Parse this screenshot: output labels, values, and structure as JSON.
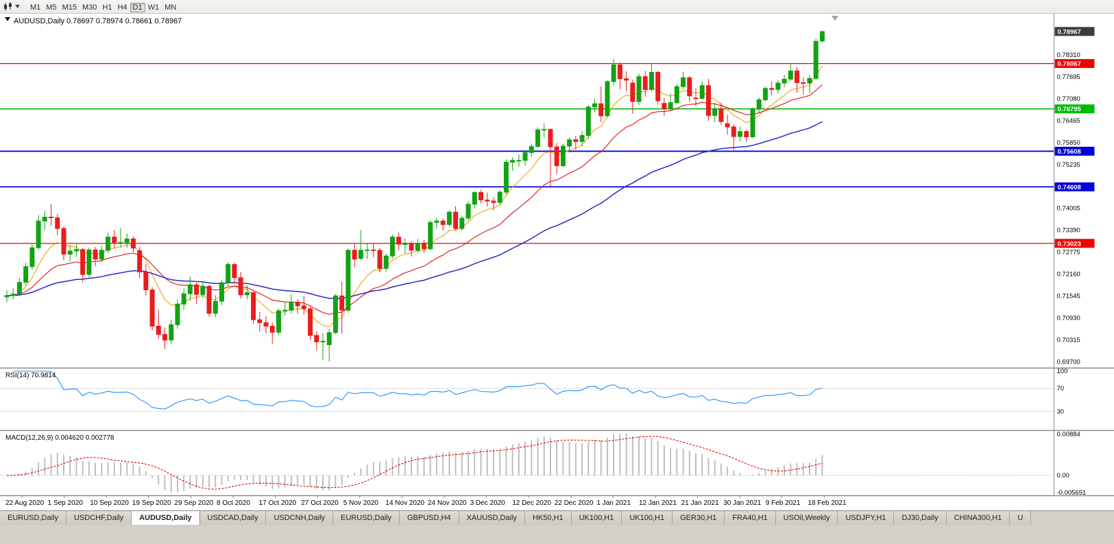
{
  "toolbar": {
    "chart_icon": "candlestick-chart-icon",
    "dropdown_icon": "chevron-down-icon",
    "timeframes": [
      "M1",
      "M5",
      "M15",
      "M30",
      "H1",
      "H4",
      "D1",
      "W1",
      "MN"
    ],
    "active_timeframe": "D1"
  },
  "chart": {
    "title_line": "AUDUSD,Daily 0.78697 0.78974 0.78661 0.78967"
  },
  "panes": {
    "rsi_label": "RSI(14) 70.9814",
    "macd_label": "MACD(12,26,9) 0.004620 0.002778"
  },
  "tabs": {
    "active_index": 2,
    "items": [
      "EURUSD,Daily",
      "USDCHF,Daily",
      "AUDUSD,Daily",
      "USDCAD,Daily",
      "USDCNH,Daily",
      "EURUSD,Daily",
      "GBPUSD,H4",
      "XAUUSD,Daily",
      "HK50,H1",
      "UK100,H1",
      "UK100,H1",
      "GER30,H1",
      "FRA40,H1",
      "USOil,Weekly",
      "USDJPY,H1",
      "DJ30,Daily",
      "CHINA300,H1",
      "U"
    ]
  },
  "chart_data": {
    "type": "candlestick",
    "symbol": "AUDUSD",
    "timeframe": "Daily",
    "current_bar": {
      "open": 0.78697,
      "high": 0.78974,
      "low": 0.78661,
      "close": 0.78967
    },
    "colors": {
      "up": "#12a312",
      "down": "#ea1c1c"
    },
    "price_axis": {
      "current": "0.78967",
      "current_bg": "#3d3d3d",
      "ticks": [
        "0.78310",
        "0.77695",
        "0.77080",
        "0.76465",
        "0.75850",
        "0.75235",
        "0.74620",
        "0.74005",
        "0.73390",
        "0.72775",
        "0.72160",
        "0.71545",
        "0.70930",
        "0.70315",
        "0.69700"
      ]
    },
    "levels": [
      {
        "price": 0.78067,
        "label": "0.78067",
        "color": "#f00000",
        "width": 1.3
      },
      {
        "price": 0.76795,
        "label": "0.76795",
        "color": "#00bb00",
        "width": 1.6
      },
      {
        "price": 0.75608,
        "label": "0.75608",
        "color": "#0000dc",
        "width": 1.8
      },
      {
        "price": 0.74608,
        "label": "0.74608",
        "color": "#0000dc",
        "width": 1.8
      },
      {
        "price": 0.73023,
        "label": "0.73023",
        "color": "#f00000",
        "width": 1.3
      }
    ],
    "moving_averages": [
      {
        "name": "fast-ma",
        "period": 8,
        "color": "#f5a623",
        "width": 1.2
      },
      {
        "name": "medium-ma",
        "period": 20,
        "color": "#e02020",
        "width": 1.2
      },
      {
        "name": "slow-ma",
        "period": 55,
        "color": "#2828c8",
        "width": 1.5
      }
    ],
    "rsi": {
      "period": 14,
      "value": 70.9814,
      "color": "#1e90ff",
      "levels": [
        100,
        70,
        30
      ]
    },
    "macd": {
      "fast": 12,
      "slow": 26,
      "signal": 9,
      "value": 0.00462,
      "signal_value": 0.002778,
      "hist_color": "#b8b8b8",
      "signal_color": "#e00000",
      "axis_labels": {
        "max": "0.00884",
        "zero": "0.00",
        "min": "-0.005651"
      }
    },
    "dates": [
      "22 Aug 2020",
      "1 Sep 2020",
      "10 Sep 2020",
      "19 Sep 2020",
      "29 Sep 2020",
      "8 Oct 2020",
      "17 Oct 2020",
      "27 Oct 2020",
      "5 Nov 2020",
      "14 Nov 2020",
      "24 Nov 2020",
      "3 Dec 2020",
      "12 Dec 2020",
      "22 Dec 2020",
      "1 Jan 2021",
      "12 Jan 2021",
      "21 Jan 2021",
      "30 Jan 2021",
      "9 Feb 2021",
      "18 Feb 2021"
    ],
    "candles": [
      [
        0.7152,
        0.7171,
        0.7137,
        0.7156
      ],
      [
        0.7156,
        0.7176,
        0.7146,
        0.716
      ],
      [
        0.716,
        0.7205,
        0.7155,
        0.7193
      ],
      [
        0.7193,
        0.7248,
        0.7185,
        0.7237
      ],
      [
        0.7237,
        0.7302,
        0.7229,
        0.729
      ],
      [
        0.729,
        0.7382,
        0.7285,
        0.7365
      ],
      [
        0.7365,
        0.7393,
        0.734,
        0.7376
      ],
      [
        0.7376,
        0.7413,
        0.7352,
        0.7374
      ],
      [
        0.7374,
        0.7385,
        0.7325,
        0.7344
      ],
      [
        0.7344,
        0.735,
        0.7255,
        0.7272
      ],
      [
        0.7272,
        0.7299,
        0.7251,
        0.7281
      ],
      [
        0.7281,
        0.73,
        0.7264,
        0.7285
      ],
      [
        0.7285,
        0.729,
        0.7193,
        0.7215
      ],
      [
        0.7215,
        0.729,
        0.7208,
        0.7284
      ],
      [
        0.7284,
        0.7292,
        0.7238,
        0.7258
      ],
      [
        0.7258,
        0.7295,
        0.725,
        0.7283
      ],
      [
        0.7283,
        0.7332,
        0.7275,
        0.732
      ],
      [
        0.732,
        0.734,
        0.7288,
        0.7305
      ],
      [
        0.7305,
        0.7345,
        0.729,
        0.7305
      ],
      [
        0.7305,
        0.733,
        0.729,
        0.7315
      ],
      [
        0.7315,
        0.7322,
        0.7277,
        0.7289
      ],
      [
        0.7282,
        0.7292,
        0.7205,
        0.7222
      ],
      [
        0.7222,
        0.7244,
        0.7156,
        0.7172
      ],
      [
        0.7172,
        0.718,
        0.7057,
        0.707
      ],
      [
        0.707,
        0.7116,
        0.7035,
        0.7047
      ],
      [
        0.7047,
        0.7066,
        0.7006,
        0.7031
      ],
      [
        0.7031,
        0.7088,
        0.7021,
        0.7074
      ],
      [
        0.7074,
        0.7145,
        0.7063,
        0.7132
      ],
      [
        0.7132,
        0.7176,
        0.7116,
        0.7161
      ],
      [
        0.7161,
        0.7209,
        0.7141,
        0.7186
      ],
      [
        0.7186,
        0.7192,
        0.7132,
        0.7159
      ],
      [
        0.7159,
        0.7197,
        0.715,
        0.7182
      ],
      [
        0.7182,
        0.7186,
        0.7097,
        0.7106
      ],
      [
        0.7106,
        0.7157,
        0.7095,
        0.714
      ],
      [
        0.714,
        0.7199,
        0.7129,
        0.7192
      ],
      [
        0.7192,
        0.725,
        0.7182,
        0.7243
      ],
      [
        0.7243,
        0.7248,
        0.719,
        0.7206
      ],
      [
        0.7206,
        0.7222,
        0.7148,
        0.7158
      ],
      [
        0.7158,
        0.7185,
        0.7145,
        0.7164
      ],
      [
        0.7164,
        0.717,
        0.7075,
        0.7088
      ],
      [
        0.7088,
        0.711,
        0.7055,
        0.708
      ],
      [
        0.708,
        0.7098,
        0.705,
        0.707
      ],
      [
        0.707,
        0.708,
        0.7021,
        0.7053
      ],
      [
        0.7053,
        0.712,
        0.7045,
        0.7113
      ],
      [
        0.7113,
        0.7138,
        0.71,
        0.7115
      ],
      [
        0.7115,
        0.716,
        0.7105,
        0.7137
      ],
      [
        0.7137,
        0.7145,
        0.7105,
        0.7127
      ],
      [
        0.7127,
        0.7155,
        0.7103,
        0.7119
      ],
      [
        0.7119,
        0.7125,
        0.703,
        0.7044
      ],
      [
        0.7044,
        0.7055,
        0.7002,
        0.7026
      ],
      [
        0.7026,
        0.705,
        0.6975,
        0.7028
      ],
      [
        0.7018,
        0.7062,
        0.6971,
        0.7052
      ],
      [
        0.7052,
        0.716,
        0.7048,
        0.7155
      ],
      [
        0.7155,
        0.7195,
        0.7049,
        0.7115
      ],
      [
        0.7115,
        0.7288,
        0.7108,
        0.7283
      ],
      [
        0.7283,
        0.7301,
        0.7235,
        0.7258
      ],
      [
        0.726,
        0.734,
        0.7255,
        0.7283
      ],
      [
        0.7283,
        0.7302,
        0.7258,
        0.7284
      ],
      [
        0.7284,
        0.7302,
        0.7263,
        0.7283
      ],
      [
        0.7283,
        0.729,
        0.7221,
        0.7232
      ],
      [
        0.7232,
        0.7273,
        0.7223,
        0.7267
      ],
      [
        0.7267,
        0.7327,
        0.726,
        0.732
      ],
      [
        0.732,
        0.7333,
        0.7283,
        0.73
      ],
      [
        0.73,
        0.7316,
        0.7275,
        0.7301
      ],
      [
        0.7301,
        0.7309,
        0.7265,
        0.7283
      ],
      [
        0.7283,
        0.7315,
        0.7276,
        0.7303
      ],
      [
        0.7303,
        0.7312,
        0.7276,
        0.7287
      ],
      [
        0.7287,
        0.7367,
        0.7283,
        0.7361
      ],
      [
        0.7361,
        0.7374,
        0.7343,
        0.7365
      ],
      [
        0.7365,
        0.7372,
        0.7338,
        0.7355
      ],
      [
        0.7355,
        0.7395,
        0.735,
        0.739
      ],
      [
        0.739,
        0.7407,
        0.7339,
        0.7344
      ],
      [
        0.7344,
        0.7379,
        0.7338,
        0.7373
      ],
      [
        0.7373,
        0.742,
        0.7365,
        0.7412
      ],
      [
        0.7412,
        0.7449,
        0.74,
        0.7445
      ],
      [
        0.7445,
        0.7453,
        0.7414,
        0.7424
      ],
      [
        0.7424,
        0.7445,
        0.7405,
        0.7421
      ],
      [
        0.7421,
        0.7432,
        0.7395,
        0.7417
      ],
      [
        0.7417,
        0.7452,
        0.741,
        0.7446
      ],
      [
        0.7446,
        0.7538,
        0.744,
        0.753
      ],
      [
        0.753,
        0.7543,
        0.7506,
        0.7535
      ],
      [
        0.7535,
        0.7552,
        0.7517,
        0.7535
      ],
      [
        0.7535,
        0.7564,
        0.752,
        0.7557
      ],
      [
        0.7557,
        0.7582,
        0.7545,
        0.7574
      ],
      [
        0.7574,
        0.7628,
        0.757,
        0.7621
      ],
      [
        0.7621,
        0.7639,
        0.7599,
        0.7622
      ],
      [
        0.7622,
        0.7624,
        0.7462,
        0.7573
      ],
      [
        0.7573,
        0.7584,
        0.7497,
        0.752
      ],
      [
        0.752,
        0.7582,
        0.7516,
        0.7575
      ],
      [
        0.7575,
        0.76,
        0.7557,
        0.7593
      ],
      [
        0.7593,
        0.7604,
        0.7565,
        0.7588
      ],
      [
        0.7588,
        0.7618,
        0.7575,
        0.7605
      ],
      [
        0.7605,
        0.769,
        0.7595,
        0.7685
      ],
      [
        0.7685,
        0.7708,
        0.767,
        0.7694
      ],
      [
        0.7694,
        0.7743,
        0.7642,
        0.766
      ],
      [
        0.766,
        0.776,
        0.7655,
        0.7756
      ],
      [
        0.7756,
        0.782,
        0.7745,
        0.7803
      ],
      [
        0.7803,
        0.781,
        0.7735,
        0.7764
      ],
      [
        0.7764,
        0.7785,
        0.7729,
        0.776
      ],
      [
        0.7752,
        0.7762,
        0.7666,
        0.77
      ],
      [
        0.77,
        0.7778,
        0.769,
        0.777
      ],
      [
        0.777,
        0.7786,
        0.7713,
        0.7734
      ],
      [
        0.7734,
        0.7805,
        0.7728,
        0.7782
      ],
      [
        0.7782,
        0.7786,
        0.7691,
        0.7702
      ],
      [
        0.7695,
        0.771,
        0.7659,
        0.7679
      ],
      [
        0.7679,
        0.7723,
        0.7674,
        0.7697
      ],
      [
        0.7697,
        0.775,
        0.7692,
        0.7742
      ],
      [
        0.7742,
        0.7784,
        0.7735,
        0.7767
      ],
      [
        0.7767,
        0.7772,
        0.77,
        0.7716
      ],
      [
        0.771,
        0.7737,
        0.7688,
        0.7709
      ],
      [
        0.7709,
        0.7758,
        0.7705,
        0.7745
      ],
      [
        0.7745,
        0.7764,
        0.7646,
        0.7661
      ],
      [
        0.7661,
        0.7696,
        0.7642,
        0.768
      ],
      [
        0.768,
        0.7696,
        0.7635,
        0.7644
      ],
      [
        0.7638,
        0.7664,
        0.7607,
        0.7629
      ],
      [
        0.7629,
        0.7636,
        0.7564,
        0.7602
      ],
      [
        0.7602,
        0.763,
        0.7588,
        0.7616
      ],
      [
        0.7616,
        0.7621,
        0.7587,
        0.7601
      ],
      [
        0.7601,
        0.7684,
        0.7598,
        0.7679
      ],
      [
        0.7679,
        0.7712,
        0.7669,
        0.7705
      ],
      [
        0.7705,
        0.7742,
        0.77,
        0.7737
      ],
      [
        0.7737,
        0.7757,
        0.7717,
        0.7734
      ],
      [
        0.7734,
        0.776,
        0.7722,
        0.7752
      ],
      [
        0.7752,
        0.7775,
        0.774,
        0.7763
      ],
      [
        0.7763,
        0.7805,
        0.7758,
        0.7786
      ],
      [
        0.7786,
        0.7797,
        0.7725,
        0.7753
      ],
      [
        0.7753,
        0.7769,
        0.772,
        0.7752
      ],
      [
        0.7752,
        0.7775,
        0.7723,
        0.7765
      ],
      [
        0.7765,
        0.7877,
        0.776,
        0.7869
      ],
      [
        0.78697,
        0.78974,
        0.78661,
        0.78967
      ]
    ]
  }
}
